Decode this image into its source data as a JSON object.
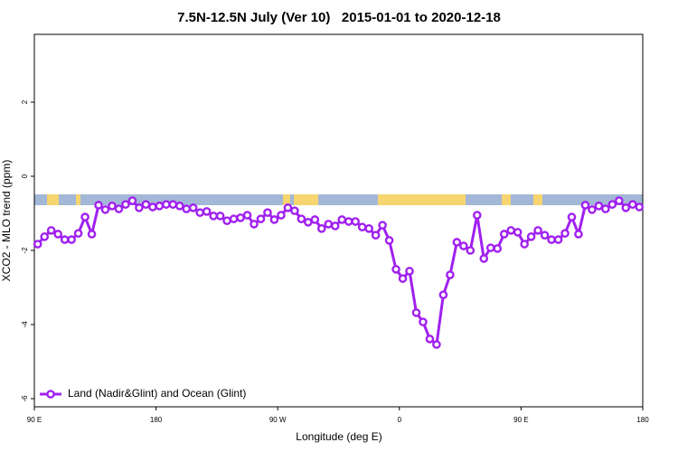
{
  "chart_data": {
    "type": "line",
    "title": "7.5N-12.5N July (Ver 10)   2015-01-01 to 2020-12-18",
    "x_label": "Longitude (deg E)",
    "y_label": "XCO2 - MLO trend (ppm)",
    "x": [
      92.5,
      97.5,
      102.5,
      107.5,
      112.5,
      117.5,
      122.5,
      127.5,
      132.5,
      137.5,
      142.5,
      147.5,
      152.5,
      157.5,
      162.5,
      167.5,
      172.5,
      177.5,
      182.5,
      187.5,
      192.5,
      197.5,
      202.5,
      207.5,
      212.5,
      217.5,
      222.5,
      227.5,
      232.5,
      237.5,
      242.5,
      247.5,
      252.5,
      257.5,
      262.5,
      267.5,
      272.5,
      277.5,
      282.5,
      287.5,
      292.5,
      297.5,
      302.5,
      307.5,
      312.5,
      317.5,
      322.5,
      327.5,
      332.5,
      337.5,
      342.5,
      347.5,
      352.5,
      357.5,
      362.5,
      367.5,
      372.5,
      377.5,
      382.5,
      387.5,
      392.5,
      397.5,
      402.5,
      407.5,
      412.5,
      417.5,
      422.5,
      427.5,
      432.5,
      437.5,
      442.5,
      447.5,
      452.5,
      457.5,
      462.5,
      467.5,
      472.5,
      477.5,
      482.5,
      487.5,
      492.5,
      497.5,
      502.5,
      507.5,
      512.5,
      517.5,
      522.5,
      527.5,
      532.5,
      537.5
    ],
    "series": [
      {
        "name": "Land (Nadir&Glint) and Ocean (Glint)",
        "color": "#a020f0",
        "values": [
          -1.83,
          -1.63,
          -1.46,
          -1.56,
          -1.71,
          -1.71,
          -1.54,
          -1.1,
          -1.56,
          -0.78,
          -0.9,
          -0.8,
          -0.88,
          -0.76,
          -0.66,
          -0.85,
          -0.76,
          -0.83,
          -0.8,
          -0.76,
          -0.76,
          -0.8,
          -0.88,
          -0.85,
          -0.98,
          -0.95,
          -1.07,
          -1.07,
          -1.2,
          -1.15,
          -1.12,
          -1.05,
          -1.29,
          -1.15,
          -0.98,
          -1.17,
          -1.05,
          -0.85,
          -0.93,
          -1.15,
          -1.24,
          -1.17,
          -1.41,
          -1.29,
          -1.34,
          -1.17,
          -1.22,
          -1.22,
          -1.37,
          -1.41,
          -1.59,
          -1.32,
          -1.73,
          -2.51,
          -2.76,
          -2.56,
          -3.68,
          -3.93,
          -4.39,
          -4.54,
          -3.2,
          -2.66,
          -1.78,
          -1.88,
          -2.0,
          -1.05,
          -2.22,
          -1.93,
          -1.95,
          -1.56,
          -1.46,
          -1.51,
          -1.83,
          -1.63,
          -1.46,
          -1.59,
          -1.71,
          -1.71,
          -1.54,
          -1.1,
          -1.56,
          -0.78,
          -0.9,
          -0.8,
          -0.88,
          -0.76,
          -0.66,
          -0.85,
          -0.76,
          -0.83
        ]
      }
    ],
    "xlim": [
      90,
      540
    ],
    "xticks": [
      {
        "value": 90,
        "label": "90 E"
      },
      {
        "value": 180,
        "label": "180"
      },
      {
        "value": 270,
        "label": "90 W"
      },
      {
        "value": 360,
        "label": "0"
      },
      {
        "value": 450,
        "label": "90 E"
      },
      {
        "value": 540,
        "label": "180"
      }
    ],
    "ylim": [
      -6.22,
      3.83
    ],
    "yticks": [
      -6,
      -4,
      -2,
      0,
      2
    ],
    "legend": "bottom-left"
  }
}
